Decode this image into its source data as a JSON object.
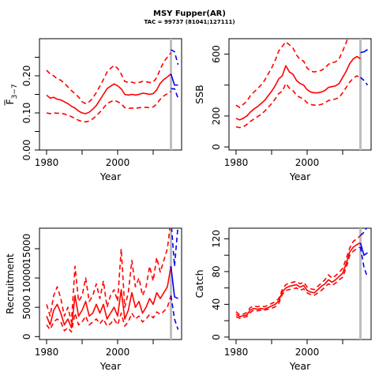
{
  "figure": {
    "title": "MSY Fupper(AR)",
    "subtitle": "TAC = 99737 (81041;127111)"
  },
  "colors": {
    "historical": "#ff0000",
    "projection": "#0000ff",
    "marker": "#bebebe"
  },
  "chart_data": [
    {
      "type": "line",
      "ylabel_main": "F",
      "ylabel_sub": "3−7",
      "ylabel_has_overbar": true,
      "xlabel": "Year",
      "xlim": [
        1978,
        2018
      ],
      "ylim": [
        0,
        0.3
      ],
      "xticks": [
        1980,
        2000
      ],
      "yticks": [
        0.0,
        0.05,
        0.1,
        0.15,
        0.2,
        0.25
      ],
      "ytick_labels": [
        "0.00",
        "",
        "0.10",
        "",
        "0.20",
        ""
      ],
      "marker_year": 2015,
      "historical": {
        "x": [
          1980,
          1981,
          1982,
          1983,
          1984,
          1985,
          1986,
          1987,
          1988,
          1989,
          1990,
          1991,
          1992,
          1993,
          1994,
          1995,
          1996,
          1997,
          1998,
          1999,
          2000,
          2001,
          2002,
          2003,
          2004,
          2005,
          2006,
          2007,
          2008,
          2009,
          2010,
          2011,
          2012,
          2013,
          2014,
          2015
        ],
        "mid": [
          0.148,
          0.14,
          0.142,
          0.137,
          0.135,
          0.13,
          0.125,
          0.118,
          0.113,
          0.105,
          0.1,
          0.098,
          0.102,
          0.11,
          0.12,
          0.135,
          0.15,
          0.165,
          0.172,
          0.178,
          0.173,
          0.165,
          0.15,
          0.148,
          0.15,
          0.148,
          0.15,
          0.153,
          0.152,
          0.15,
          0.152,
          0.162,
          0.18,
          0.19,
          0.197,
          0.205
        ],
        "lower": [
          0.1,
          0.098,
          0.1,
          0.099,
          0.099,
          0.097,
          0.094,
          0.09,
          0.085,
          0.08,
          0.077,
          0.076,
          0.078,
          0.084,
          0.092,
          0.102,
          0.113,
          0.125,
          0.13,
          0.134,
          0.13,
          0.125,
          0.114,
          0.112,
          0.113,
          0.112,
          0.114,
          0.115,
          0.115,
          0.114,
          0.116,
          0.124,
          0.137,
          0.146,
          0.152,
          0.158
        ],
        "upper": [
          0.215,
          0.205,
          0.2,
          0.192,
          0.188,
          0.18,
          0.17,
          0.16,
          0.152,
          0.143,
          0.13,
          0.125,
          0.13,
          0.14,
          0.155,
          0.172,
          0.19,
          0.21,
          0.22,
          0.228,
          0.22,
          0.205,
          0.185,
          0.182,
          0.183,
          0.18,
          0.182,
          0.185,
          0.184,
          0.182,
          0.183,
          0.195,
          0.218,
          0.238,
          0.25,
          0.262
        ]
      },
      "projection": {
        "x": [
          2015,
          2016,
          2017
        ],
        "mid": [
          0.205,
          0.175,
          0.175
        ],
        "lower": [
          0.165,
          0.165,
          0.14
        ],
        "upper": [
          0.27,
          0.265,
          0.23
        ]
      }
    },
    {
      "type": "line",
      "ylabel": "SSB",
      "xlabel": "Year",
      "xlim": [
        1978,
        2018
      ],
      "ylim": [
        -20,
        700
      ],
      "xticks": [
        1980,
        2000
      ],
      "yticks": [
        0,
        200,
        400,
        600
      ],
      "ytick_labels": [
        "0",
        "200",
        "",
        "600"
      ],
      "marker_year": 2015,
      "historical": {
        "x": [
          1980,
          1981,
          1982,
          1983,
          1984,
          1985,
          1986,
          1987,
          1988,
          1989,
          1990,
          1991,
          1992,
          1993,
          1994,
          1995,
          1996,
          1997,
          1998,
          1999,
          2000,
          2001,
          2002,
          2003,
          2004,
          2005,
          2006,
          2007,
          2008,
          2009,
          2010,
          2011,
          2012,
          2013,
          2014,
          2015
        ],
        "mid": [
          185,
          175,
          185,
          200,
          225,
          245,
          260,
          280,
          300,
          330,
          360,
          395,
          440,
          460,
          525,
          485,
          470,
          430,
          410,
          400,
          370,
          355,
          350,
          350,
          355,
          365,
          385,
          390,
          395,
          410,
          450,
          490,
          540,
          570,
          585,
          570
        ],
        "lower": [
          130,
          125,
          130,
          145,
          165,
          180,
          195,
          210,
          230,
          255,
          280,
          310,
          345,
          360,
          410,
          380,
          365,
          335,
          320,
          310,
          285,
          275,
          270,
          270,
          275,
          285,
          300,
          305,
          310,
          320,
          350,
          385,
          420,
          445,
          460,
          445
        ],
        "upper": [
          270,
          255,
          275,
          295,
          330,
          355,
          375,
          400,
          430,
          470,
          510,
          560,
          620,
          650,
          680,
          660,
          640,
          595,
          565,
          555,
          510,
          490,
          485,
          490,
          495,
          510,
          535,
          545,
          550,
          570,
          620,
          675,
          740,
          780,
          790,
          780
        ]
      },
      "projection": {
        "x": [
          2015,
          2016,
          2017
        ],
        "mid": [
          610,
          615,
          630
        ],
        "lower": [
          450,
          430,
          400
        ],
        "upper": [
          860,
          860,
          850
        ]
      }
    },
    {
      "type": "line",
      "ylabel": "Recruitment",
      "xlabel": "Year",
      "xlim": [
        1978,
        2018
      ],
      "ylim": [
        -500,
        18500
      ],
      "xticks": [
        1980,
        2000
      ],
      "yticks": [
        0,
        5000,
        10000,
        15000
      ],
      "ytick_labels": [
        "0",
        "5000",
        "10000",
        "15000"
      ],
      "marker_year": 2015,
      "historical": {
        "x": [
          1980,
          1981,
          1982,
          1983,
          1984,
          1985,
          1986,
          1987,
          1988,
          1989,
          1990,
          1991,
          1992,
          1993,
          1994,
          1995,
          1996,
          1997,
          1998,
          1999,
          2000,
          2001,
          2002,
          2003,
          2004,
          2005,
          2006,
          2007,
          2008,
          2009,
          2010,
          2011,
          2012,
          2013,
          2014,
          2015
        ],
        "mid": [
          3500,
          2000,
          4500,
          5500,
          4000,
          2000,
          3000,
          1500,
          7000,
          3500,
          4500,
          6000,
          3500,
          4000,
          5500,
          4000,
          5500,
          3000,
          4000,
          5000,
          3500,
          8000,
          3000,
          4500,
          7500,
          5000,
          6000,
          4000,
          5000,
          6500,
          5500,
          7500,
          6500,
          7500,
          8500,
          12000
        ],
        "lower": [
          2000,
          1200,
          2500,
          3000,
          2500,
          1000,
          1500,
          800,
          4000,
          2000,
          2500,
          3500,
          2000,
          2500,
          3000,
          2200,
          3000,
          1800,
          2200,
          3000,
          2000,
          4000,
          1800,
          2500,
          4000,
          3000,
          3500,
          2500,
          3000,
          3800,
          3200,
          4200,
          3800,
          4300,
          5000,
          7000
        ],
        "upper": [
          5500,
          3500,
          7000,
          8500,
          6500,
          3500,
          5000,
          2500,
          12000,
          6000,
          7000,
          10000,
          6000,
          7000,
          9000,
          6500,
          9500,
          5000,
          7000,
          8000,
          6000,
          15000,
          5000,
          7500,
          13000,
          8500,
          10000,
          7000,
          8500,
          12000,
          9500,
          13500,
          11000,
          13000,
          15000,
          20000
        ]
      },
      "projection": {
        "x": [
          2015,
          2016,
          2017
        ],
        "mid": [
          12000,
          6800,
          6500
        ],
        "lower": [
          7000,
          3000,
          1200
        ],
        "upper": [
          20000,
          12000,
          19000
        ]
      }
    },
    {
      "type": "line",
      "ylabel": "Catch",
      "xlabel": "Year",
      "xlim": [
        1978,
        2018
      ],
      "ylim": [
        -3,
        133
      ],
      "xticks": [
        1980,
        2000
      ],
      "yticks": [
        0,
        20,
        40,
        60,
        80,
        100,
        120
      ],
      "ytick_labels": [
        "0",
        "",
        "40",
        "",
        "80",
        "",
        "120"
      ],
      "marker_year": 2015,
      "historical": {
        "x": [
          1980,
          1981,
          1982,
          1983,
          1984,
          1985,
          1986,
          1987,
          1988,
          1989,
          1990,
          1991,
          1992,
          1993,
          1994,
          1995,
          1996,
          1997,
          1998,
          1999,
          2000,
          2001,
          2002,
          2003,
          2004,
          2005,
          2006,
          2007,
          2008,
          2009,
          2010,
          2011,
          2012,
          2013,
          2014,
          2015
        ],
        "mid": [
          28,
          25,
          26,
          27,
          33,
          35,
          34,
          35,
          34,
          36,
          38,
          40,
          44,
          55,
          60,
          62,
          63,
          64,
          61,
          63,
          57,
          55,
          54,
          58,
          62,
          65,
          70,
          67,
          70,
          74,
          78,
          90,
          104,
          110,
          113,
          115
        ],
        "lower": [
          25,
          23,
          24,
          25,
          30,
          33,
          32,
          33,
          33,
          34,
          35,
          37,
          41,
          52,
          57,
          58,
          59,
          60,
          57,
          59,
          54,
          52,
          51,
          54,
          57,
          61,
          65,
          63,
          66,
          70,
          73,
          85,
          100,
          105,
          108,
          110
        ],
        "upper": [
          31,
          27,
          28,
          30,
          36,
          38,
          37,
          38,
          37,
          39,
          41,
          43,
          47,
          58,
          64,
          66,
          67,
          68,
          65,
          67,
          61,
          59,
          58,
          62,
          66,
          70,
          76,
          72,
          75,
          79,
          84,
          96,
          109,
          117,
          120,
          124
        ]
      },
      "projection": {
        "x": [
          2015,
          2016,
          2017
        ],
        "mid": [
          115,
          100,
          103
        ],
        "lower": [
          110,
          85,
          73
        ],
        "upper": [
          124,
          128,
          135
        ]
      }
    }
  ]
}
